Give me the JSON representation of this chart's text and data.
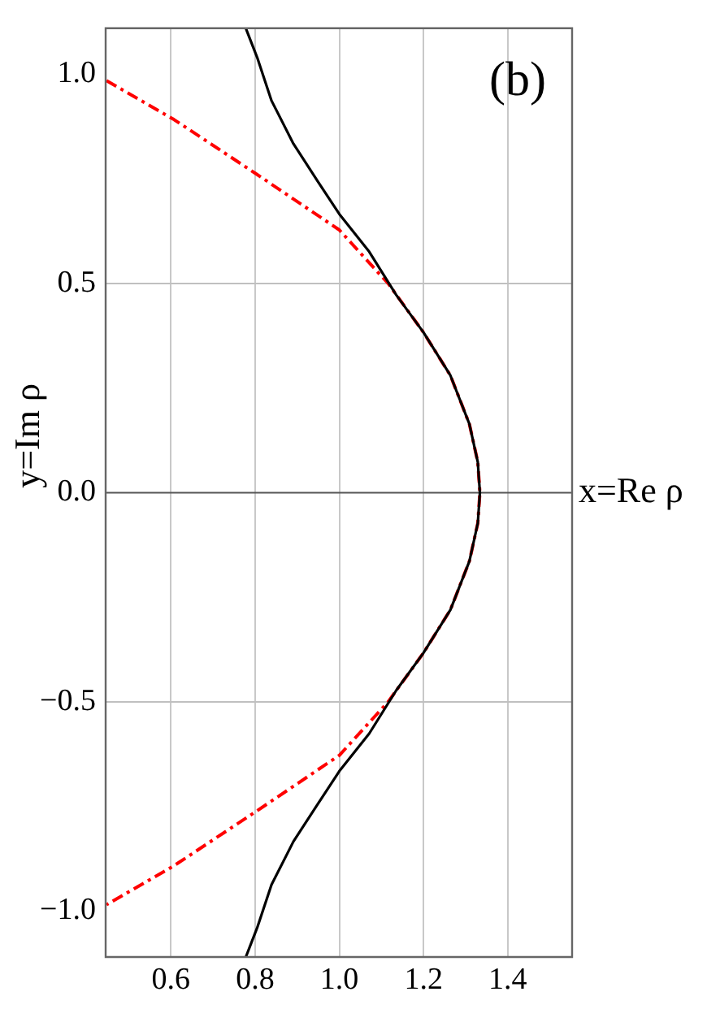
{
  "chart_data": {
    "type": "line",
    "xlabel": "x=Re ρ",
    "ylabel": "y=Im ρ",
    "annotations": [
      "(b)"
    ],
    "xlim": [
      0.445,
      1.553
    ],
    "ylim": [
      -1.11,
      1.11
    ],
    "xticks": [
      {
        "value": 0.6,
        "label": "0.6"
      },
      {
        "value": 0.8,
        "label": "0.8"
      },
      {
        "value": 1.0,
        "label": "1.0"
      },
      {
        "value": 1.2,
        "label": "1.2"
      },
      {
        "value": 1.4,
        "label": "1.4"
      }
    ],
    "yticks": [
      {
        "value": -1.0,
        "label": "−1.0"
      },
      {
        "value": -0.5,
        "label": "−0.5"
      },
      {
        "value": 0,
        "label": "0.0"
      },
      {
        "value": 0.5,
        "label": "0.5"
      },
      {
        "value": 1.0,
        "label": "1.0"
      }
    ],
    "grid": "x",
    "legend": false,
    "marker": "none",
    "ref_lines": [
      {
        "axis": "y",
        "value": 0.5,
        "color": "#c0c0c0"
      },
      {
        "axis": "y",
        "value": -0.5,
        "color": "#c0c0c0"
      },
      {
        "axis": "y",
        "value": 0,
        "color": "#555555"
      }
    ],
    "series": [
      {
        "color": "#000000",
        "line_style": "solid",
        "x": [
          0.778,
          0.805,
          0.839,
          0.891,
          0.949,
          1.0,
          1.071,
          1.135,
          1.2,
          1.264,
          1.309,
          1.329,
          1.334,
          1.329,
          1.309,
          1.264,
          1.2,
          1.135,
          1.071,
          1.0,
          0.949,
          0.891,
          0.839,
          0.805,
          0.778
        ],
        "values": [
          1.11,
          1.04,
          0.937,
          0.834,
          0.744,
          0.666,
          0.576,
          0.473,
          0.383,
          0.28,
          0.164,
          0.073,
          0,
          -0.073,
          -0.164,
          -0.28,
          -0.383,
          -0.473,
          -0.576,
          -0.666,
          -0.744,
          -0.834,
          -0.937,
          -1.04,
          -1.11
        ]
      },
      {
        "color": "#ff0000",
        "line_style": "dashed",
        "x": [
          0.447,
          0.607,
          0.801,
          1.0,
          1.116,
          1.2,
          1.264,
          1.309,
          1.329,
          1.334,
          1.329,
          1.309,
          1.264,
          1.2,
          1.116,
          1.0,
          0.801,
          0.607,
          0.447
        ],
        "values": [
          0.985,
          0.892,
          0.763,
          0.628,
          0.5,
          0.383,
          0.28,
          0.164,
          0.073,
          0,
          -0.073,
          -0.164,
          -0.28,
          -0.383,
          -0.5,
          -0.628,
          -0.763,
          -0.892,
          -0.985
        ]
      }
    ]
  }
}
